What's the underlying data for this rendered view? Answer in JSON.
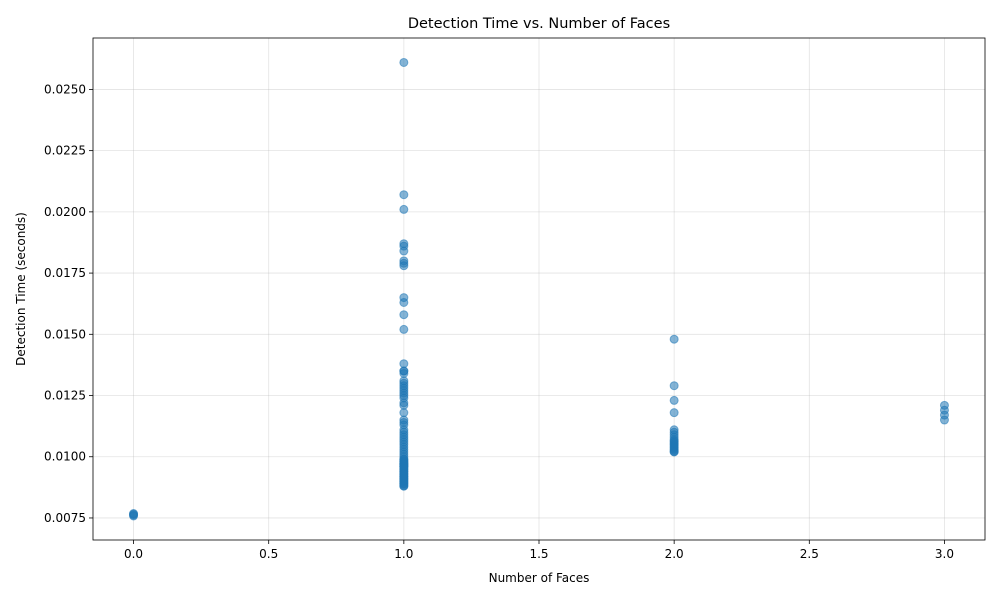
{
  "chart_data": {
    "type": "scatter",
    "title": "Detection Time vs. Number of Faces",
    "xlabel": "Number of Faces",
    "ylabel": "Detection Time (seconds)",
    "xlim": [
      -0.15,
      3.15
    ],
    "ylim": [
      0.0066,
      0.0271
    ],
    "xticks": [
      0.0,
      0.5,
      1.0,
      1.5,
      2.0,
      2.5,
      3.0
    ],
    "xtick_labels": [
      "0.0",
      "0.5",
      "1.0",
      "1.5",
      "2.0",
      "2.5",
      "3.0"
    ],
    "yticks": [
      0.0075,
      0.01,
      0.0125,
      0.015,
      0.0175,
      0.02,
      0.0225,
      0.025
    ],
    "ytick_labels": [
      "0.0075",
      "0.0100",
      "0.0125",
      "0.0150",
      "0.0175",
      "0.0200",
      "0.0225",
      "0.0250"
    ],
    "grid": true,
    "marker_color": "#1f77b4",
    "marker_alpha": 0.55,
    "series": [
      {
        "x": [
          0,
          0,
          0,
          0,
          1,
          1,
          1,
          1,
          1,
          1,
          1,
          1,
          1,
          1,
          1,
          1,
          1,
          1,
          1,
          1,
          1,
          1,
          1,
          1,
          1,
          1,
          1,
          1,
          1,
          1,
          1,
          1,
          1,
          1,
          1,
          1,
          1,
          1,
          1,
          1,
          1,
          1,
          1,
          1,
          1,
          1,
          1,
          1,
          1,
          1,
          1,
          1,
          1,
          1,
          1,
          1,
          1,
          1,
          1,
          1,
          1,
          1,
          1,
          1,
          1,
          1,
          1,
          1,
          1,
          1,
          1,
          1,
          1,
          1,
          1,
          1,
          1,
          1,
          1,
          1,
          1,
          1,
          1,
          1,
          2,
          2,
          2,
          2,
          2,
          2,
          2,
          2,
          2,
          2,
          2,
          2,
          2,
          2,
          2,
          2,
          2,
          2,
          2,
          2,
          3,
          3,
          3,
          3
        ],
        "y": [
          0.00758,
          0.00762,
          0.00765,
          0.00768,
          0.0261,
          0.0207,
          0.0201,
          0.0187,
          0.0186,
          0.0184,
          0.018,
          0.0179,
          0.0178,
          0.0165,
          0.0163,
          0.0158,
          0.0152,
          0.0138,
          0.0135,
          0.0135,
          0.0134,
          0.0131,
          0.013,
          0.0129,
          0.0128,
          0.0127,
          0.0126,
          0.0125,
          0.0124,
          0.0122,
          0.0121,
          0.0118,
          0.0115,
          0.0114,
          0.0113,
          0.0111,
          0.011,
          0.0109,
          0.0108,
          0.0107,
          0.0106,
          0.0105,
          0.0104,
          0.0103,
          0.0102,
          0.0101,
          0.01,
          0.0099,
          0.00985,
          0.0098,
          0.00975,
          0.0097,
          0.00965,
          0.0096,
          0.00955,
          0.0095,
          0.00945,
          0.0094,
          0.00935,
          0.0093,
          0.00925,
          0.0092,
          0.00915,
          0.0091,
          0.00905,
          0.009,
          0.00895,
          0.0089,
          0.00885,
          0.0088,
          0.0097,
          0.0096,
          0.0095,
          0.0094,
          0.0093,
          0.0092,
          0.0091,
          0.009,
          0.0089,
          0.0088,
          0.0099,
          0.0098,
          0.0097,
          0.0096,
          0.0148,
          0.0129,
          0.0123,
          0.0118,
          0.0111,
          0.011,
          0.0109,
          0.0108,
          0.0107,
          0.01065,
          0.0106,
          0.01055,
          0.0105,
          0.01045,
          0.0104,
          0.01035,
          0.0103,
          0.01025,
          0.0102,
          0.0102,
          0.0121,
          0.0119,
          0.0117,
          0.0115
        ]
      }
    ]
  }
}
